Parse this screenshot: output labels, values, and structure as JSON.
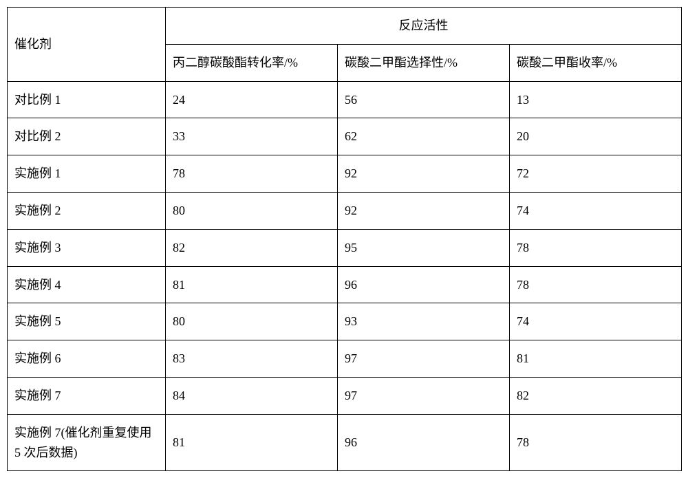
{
  "table": {
    "header": {
      "rowLabel": "催化剂",
      "groupLabel": "反应活性",
      "subColumns": [
        "丙二醇碳酸酯转化率/%",
        "碳酸二甲酯选择性/%",
        "碳酸二甲酯收率/%"
      ]
    },
    "rows": [
      {
        "label": "对比例 1",
        "values": [
          "24",
          "56",
          "13"
        ]
      },
      {
        "label": "对比例 2",
        "values": [
          "33",
          "62",
          "20"
        ]
      },
      {
        "label": "实施例 1",
        "values": [
          "78",
          "92",
          "72"
        ]
      },
      {
        "label": "实施例 2",
        "values": [
          "80",
          "92",
          "74"
        ]
      },
      {
        "label": "实施例 3",
        "values": [
          "82",
          "95",
          "78"
        ]
      },
      {
        "label": "实施例 4",
        "values": [
          "81",
          "96",
          "78"
        ]
      },
      {
        "label": "实施例 5",
        "values": [
          "80",
          "93",
          "74"
        ]
      },
      {
        "label": "实施例 6",
        "values": [
          "83",
          "97",
          "81"
        ]
      },
      {
        "label": "实施例 7",
        "values": [
          "84",
          "97",
          "82"
        ]
      },
      {
        "label": "实施例 7(催化剂重复使用 5 次后数据)",
        "values": [
          "81",
          "96",
          "78"
        ]
      }
    ],
    "colWidths": [
      "230px",
      "250px",
      "250px",
      "250px"
    ],
    "borderColor": "#000000",
    "backgroundColor": "#ffffff",
    "fontSize": 18,
    "fontFamily": "SimSun"
  }
}
